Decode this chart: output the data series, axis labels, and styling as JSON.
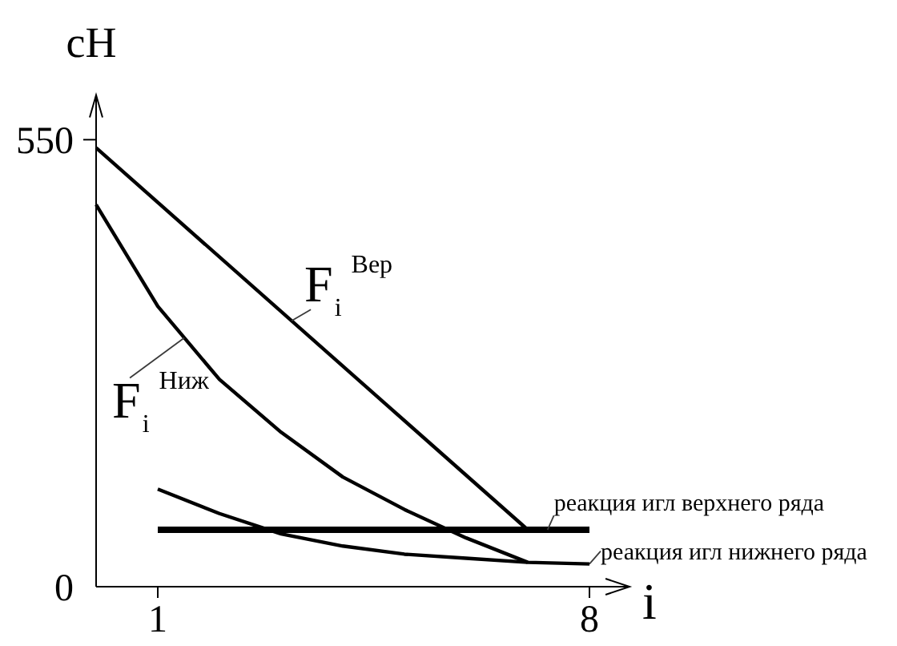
{
  "chart_data": {
    "type": "line",
    "ylabel": "сН",
    "xlabel": "i",
    "xlim": [
      0,
      8.65
    ],
    "ylim": [
      0,
      605
    ],
    "xticks": [
      1,
      8
    ],
    "yticks": [
      0,
      550
    ],
    "series": [
      {
        "name": "F$_{i}$$^{Вер}$",
        "color": "#000000",
        "x": [
          0,
          7
        ],
        "values": [
          540,
          70
        ]
      },
      {
        "name": "F$_{i}$$^{Ниж}$",
        "color": "#000000",
        "x": [
          0,
          1,
          2,
          3,
          4,
          5,
          6,
          7
        ],
        "values": [
          470,
          345,
          255,
          190,
          135,
          95,
          60,
          30
        ]
      },
      {
        "name": "реакция игл верхнего ряда",
        "color": "#000000",
        "x": [
          1,
          8
        ],
        "values": [
          70,
          70
        ]
      },
      {
        "name": "реакция игл нижнего ряда",
        "color": "#000000",
        "x": [
          1,
          2,
          3,
          4,
          5,
          6,
          7,
          8
        ],
        "values": [
          120,
          90,
          65,
          50,
          40,
          35,
          30,
          28
        ]
      }
    ]
  }
}
